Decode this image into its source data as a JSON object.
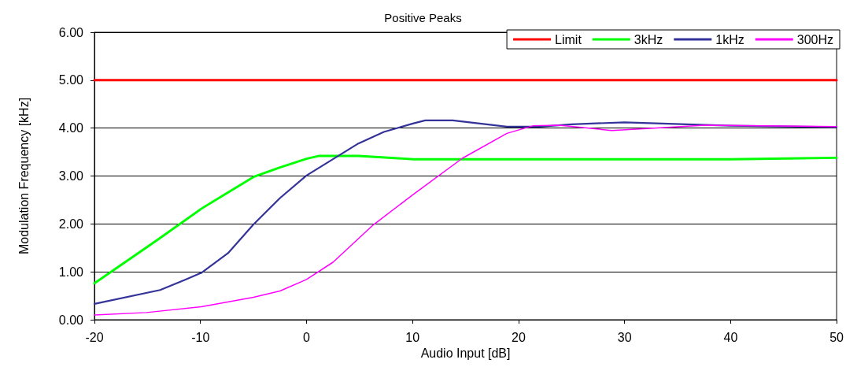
{
  "chart_data": {
    "type": "line",
    "title": "Positive Peaks",
    "xlabel": "Audio Input [dB]",
    "ylabel": "Modulation Frequency [kHz]",
    "xlim": [
      -20,
      50
    ],
    "xticks": [
      -20,
      -10,
      0,
      10,
      20,
      30,
      40,
      50
    ],
    "ylim": [
      0,
      6
    ],
    "yticks": [
      {
        "value": 0,
        "label": "0.00"
      },
      {
        "value": 1,
        "label": "1.00"
      },
      {
        "value": 2,
        "label": "2.00"
      },
      {
        "value": 3,
        "label": "3.00"
      },
      {
        "value": 4,
        "label": "4.00"
      },
      {
        "value": 5,
        "label": "5.00"
      },
      {
        "value": 6,
        "label": "6.00"
      }
    ],
    "grid": "y",
    "legend": "top right",
    "marker": "none",
    "line_style": "solid",
    "series": [
      {
        "name": "Limit",
        "color": "#ff0000",
        "x": [
          -20,
          50
        ],
        "values": [
          5,
          5
        ]
      },
      {
        "name": "3kHz",
        "color": "#00ff00",
        "x": [
          -20,
          -14.1,
          -9.9,
          -5,
          -2.5,
          0,
          1.2,
          4.9,
          10.1,
          20,
          30,
          40,
          50
        ],
        "values": [
          0.76,
          1.66,
          2.32,
          2.98,
          3.18,
          3.36,
          3.42,
          3.42,
          3.35,
          3.35,
          3.35,
          3.35,
          3.38
        ]
      },
      {
        "name": "1kHz",
        "color": "#333399",
        "x": [
          -20,
          -13.8,
          -11.4,
          -9.9,
          -7.4,
          -5,
          -2.5,
          0,
          4.9,
          7.3,
          10.1,
          11.2,
          13.8,
          18.9,
          22,
          25,
          30,
          40,
          50
        ],
        "values": [
          0.33,
          0.62,
          0.84,
          0.98,
          1.39,
          1.99,
          2.54,
          3.01,
          3.68,
          3.92,
          4.1,
          4.16,
          4.16,
          4.03,
          4.03,
          4.08,
          4.12,
          4.05,
          4.02
        ]
      },
      {
        "name": "300Hz",
        "color": "#ff00ff",
        "x": [
          -20,
          -15.1,
          -9.9,
          -5,
          -2.5,
          0,
          2.5,
          6.3,
          10.1,
          14.7,
          18.9,
          21.4,
          23.8,
          28.8,
          37.6,
          50
        ],
        "values": [
          0.1,
          0.15,
          0.27,
          0.47,
          0.6,
          0.84,
          1.2,
          1.98,
          2.62,
          3.37,
          3.89,
          4.05,
          4.06,
          3.95,
          4.06,
          4.03
        ]
      }
    ]
  }
}
